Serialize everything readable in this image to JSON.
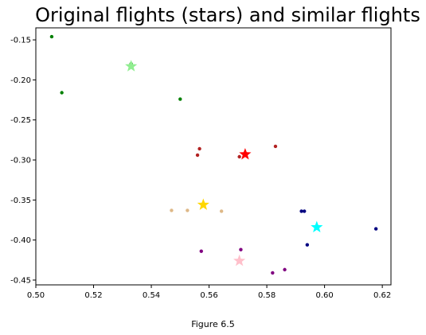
{
  "caption": "Figure 6.5",
  "chart_data": {
    "type": "scatter",
    "title": "Original flights (stars) and similar flights",
    "xlabel": "",
    "ylabel": "",
    "xlim": [
      0.5,
      0.623
    ],
    "ylim": [
      -0.456,
      -0.135
    ],
    "grid": false,
    "legend": "none",
    "xticks": [
      0.5,
      0.52,
      0.54,
      0.56,
      0.58,
      0.6,
      0.62
    ],
    "xtick_labels": [
      "0.50",
      "0.52",
      "0.54",
      "0.56",
      "0.58",
      "0.60",
      "0.62"
    ],
    "yticks": [
      -0.15,
      -0.2,
      -0.25,
      -0.3,
      -0.35,
      -0.4,
      -0.45
    ],
    "ytick_labels": [
      "-0.15",
      "-0.20",
      "-0.25",
      "-0.30",
      "-0.35",
      "-0.40",
      "-0.45"
    ],
    "series": [
      {
        "color": "#90ee90",
        "star": [
          0.533,
          -0.183
        ],
        "points": [
          [
            0.5055,
            -0.146
          ],
          [
            0.509,
            -0.216
          ],
          [
            0.533,
            -0.18
          ],
          [
            0.55,
            -0.224
          ]
        ],
        "point_color": "#008000"
      },
      {
        "color": "#ff0000",
        "star": [
          0.5725,
          -0.293
        ],
        "points": [
          [
            0.5567,
            -0.286
          ],
          [
            0.556,
            -0.294
          ],
          [
            0.5705,
            -0.296
          ],
          [
            0.583,
            -0.283
          ]
        ],
        "point_color": "#b22222"
      },
      {
        "color": "#ffd700",
        "star": [
          0.558,
          -0.356
        ],
        "points": [
          [
            0.547,
            -0.363
          ],
          [
            0.5525,
            -0.363
          ],
          [
            0.5643,
            -0.364
          ]
        ],
        "point_color": "#deb887"
      },
      {
        "color": "#00ffff",
        "star": [
          0.5973,
          -0.384
        ],
        "points": [
          [
            0.592,
            -0.364
          ],
          [
            0.593,
            -0.364
          ],
          [
            0.594,
            -0.406
          ],
          [
            0.6178,
            -0.386
          ]
        ],
        "point_color": "#000080"
      },
      {
        "color": "#ffc0cb",
        "star": [
          0.5705,
          -0.426
        ],
        "points": [
          [
            0.5573,
            -0.414
          ],
          [
            0.571,
            -0.412
          ],
          [
            0.582,
            -0.441
          ],
          [
            0.5862,
            -0.437
          ]
        ],
        "point_color": "#800080"
      }
    ]
  }
}
